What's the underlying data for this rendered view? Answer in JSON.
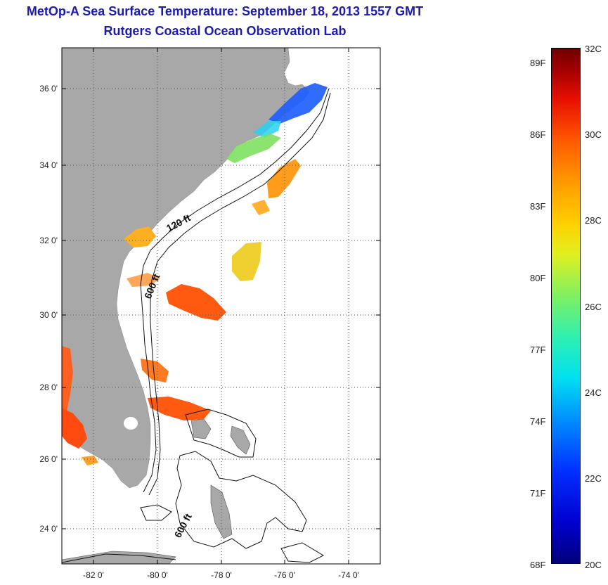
{
  "header": {
    "title": "MetOp-A Sea Surface Temperature:  September 18, 2013 1557 GMT",
    "subtitle": "Rutgers Coastal Ocean Observation Lab"
  },
  "map": {
    "lat_ticks": [
      "36 0'",
      "34 0'",
      "32 0'",
      "30 0'",
      "28 0'",
      "26 0'",
      "24 0'"
    ],
    "lon_ticks": [
      "-82 0'",
      "-80 0'",
      "-78 0'",
      "-76 0'",
      "-74 0'"
    ],
    "contour_labels": [
      "120 ft",
      "600 ft",
      "600 ft"
    ],
    "colors": {
      "land": "#a8a8a8",
      "ocean": "#ffffff",
      "grid": "#555555"
    }
  },
  "colorbar": {
    "fahrenheit": [
      "89F",
      "86F",
      "83F",
      "80F",
      "77F",
      "74F",
      "71F",
      "68F"
    ],
    "celsius": [
      "32C",
      "30C",
      "28C",
      "26C",
      "24C",
      "22C",
      "20C"
    ],
    "min_c": 20,
    "max_c": 32,
    "min_f": 68,
    "max_f": 89
  }
}
